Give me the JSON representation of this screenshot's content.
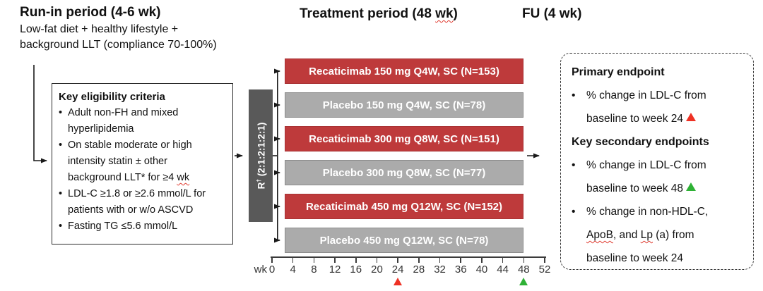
{
  "colors": {
    "arm_active": "#BE3A3B",
    "arm_active_border": "#A93335",
    "arm_placebo": "#ABABAB",
    "arm_placebo_border": "#8C8C8C",
    "randomization_bar": "#595959",
    "marker_red": "#EE3124",
    "marker_green": "#2EB135",
    "line": "#1A1A1A"
  },
  "runin": {
    "title": "Run-in period (4-6 wk)",
    "lines": [
      "Low-fat diet + healthy lifestyle +",
      "background LLT (compliance 70-100%)"
    ]
  },
  "headers": {
    "treatment": [
      "Treatment period (48 ",
      {
        "t": "wk",
        "wavy": true
      },
      ")"
    ],
    "fu": "FU (4 wk)"
  },
  "eligibility": {
    "title": "Key eligibility criteria",
    "items": [
      {
        "lines": [
          [
            "Adult non-FH and mixed"
          ],
          [
            "hyperlipidemia"
          ]
        ]
      },
      {
        "lines": [
          [
            "On stable moderate or high"
          ],
          [
            "intensity statin ± other"
          ],
          [
            "background LLT* for ≥4 ",
            {
              "t": "wk",
              "wavy": true
            }
          ]
        ]
      },
      {
        "lines": [
          [
            "LDL-C ≥1.8 or ≥2.6 mmol/L for"
          ],
          [
            "patients with or w/o ASCVD"
          ]
        ]
      },
      {
        "lines": [
          [
            "Fasting TG ≤5.6 mmol/L"
          ]
        ]
      }
    ]
  },
  "randomization": {
    "label": [
      "R",
      {
        "sup": "†"
      },
      " (2:1:2:1:2:1)"
    ]
  },
  "arms": [
    {
      "label": "Recaticimab 150 mg Q4W, SC (N=153)",
      "type": "active"
    },
    {
      "label": "Placebo 150 mg Q4W, SC (N=78)",
      "type": "placebo"
    },
    {
      "label": "Recaticimab 300 mg Q8W, SC (N=151)",
      "type": "active"
    },
    {
      "label": "Placebo 300 mg Q8W, SC (N=77)",
      "type": "placebo"
    },
    {
      "label": "Recaticimab 450 mg Q12W, SC (N=152)",
      "type": "active"
    },
    {
      "label": "Placebo 450 mg Q12W, SC (N=78)",
      "type": "placebo"
    }
  ],
  "axis": {
    "unit": "wk",
    "ticks": [
      0,
      4,
      8,
      12,
      16,
      20,
      24,
      28,
      32,
      36,
      40,
      44,
      48,
      52
    ],
    "markers": [
      {
        "at": 24,
        "color": "red"
      },
      {
        "at": 48,
        "color": "green"
      }
    ]
  },
  "endpoints": {
    "sections": [
      {
        "title": "Primary endpoint",
        "bullets": [
          {
            "lines": [
              [
                "% change in LDL-C from"
              ],
              [
                "baseline to week 24 ",
                {
                  "tri": "red"
                }
              ]
            ]
          }
        ]
      },
      {
        "title": "Key secondary endpoints",
        "bullets": [
          {
            "lines": [
              [
                "% change in LDL-C from"
              ],
              [
                "baseline to week 48 ",
                {
                  "tri": "green"
                }
              ]
            ]
          },
          {
            "lines": [
              [
                "% change in non-HDL-C,"
              ],
              [
                {
                  "t": "ApoB",
                  "wavy": true
                },
                ", and ",
                {
                  "t": "Lp",
                  "wavy": true
                },
                " (a) from"
              ],
              [
                "baseline to week 24"
              ]
            ]
          }
        ]
      }
    ]
  }
}
